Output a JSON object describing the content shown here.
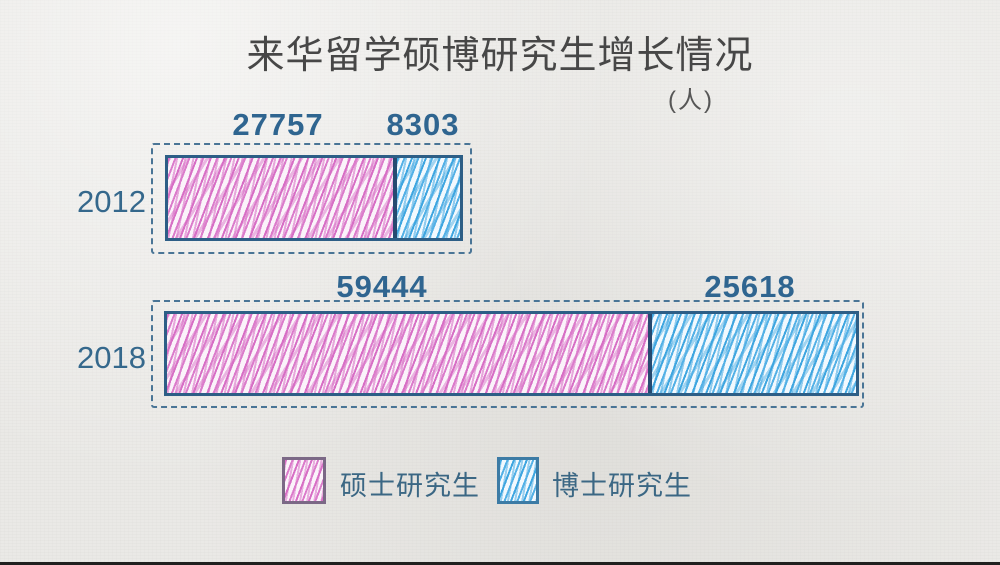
{
  "title": "来华留学硕博研究生增长情况",
  "unit_label": "(人)",
  "chart_data": {
    "type": "bar",
    "orientation": "horizontal",
    "stacked": true,
    "title": "来华留学硕博研究生增长情况",
    "unit": "人",
    "categories": [
      "2012",
      "2018"
    ],
    "series": [
      {
        "name": "硕士研究生",
        "color": "#d76fc5",
        "values": [
          27757,
          59444
        ]
      },
      {
        "name": "博士研究生",
        "color": "#3fa6e0",
        "values": [
          8303,
          25618
        ]
      }
    ],
    "value_labels_shown": true,
    "legend_position": "bottom",
    "style": "hand-drawn crayon hatching on paper texture",
    "axis": {
      "gridlines": false,
      "value_axis_shown": false
    }
  },
  "legend": {
    "items": [
      {
        "label": "硕士研究生",
        "color": "#d76fc5"
      },
      {
        "label": "博士研究生",
        "color": "#3fa6e0"
      }
    ]
  },
  "colors": {
    "background": "#eae9e6",
    "title_text": "#474747",
    "number_text": "#2f6590",
    "bar_border": "#2d5e86",
    "dashed_border": "#4a7596",
    "master_pink": "#d76fc5",
    "doctor_blue": "#3fa6e0"
  }
}
